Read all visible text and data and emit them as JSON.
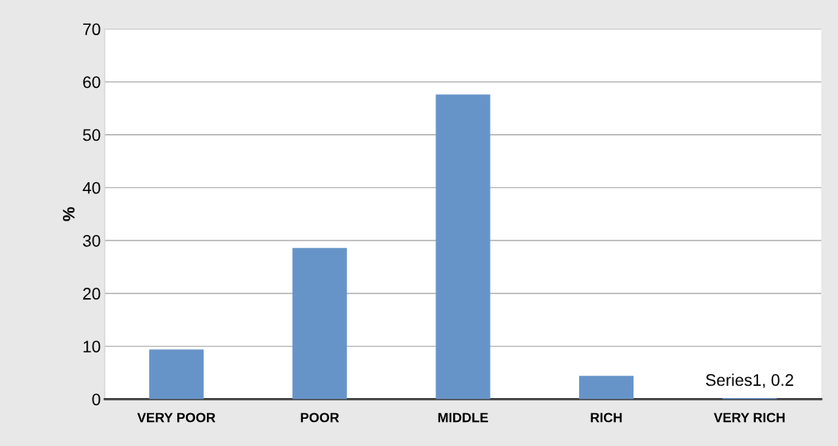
{
  "chart_data": {
    "type": "bar",
    "ylabel": "%",
    "categories": [
      "VERY POOR",
      "POOR",
      "MIDDLE",
      "RICH",
      "VERY RICH"
    ],
    "values": [
      9.4,
      28.6,
      57.6,
      4.4,
      0.2
    ],
    "value_labels": [
      null,
      null,
      null,
      null,
      "Series1, 0.2"
    ],
    "color": "#6794c8",
    "ylim": [
      0,
      70
    ],
    "yticks": [
      0,
      10,
      20,
      30,
      40,
      50,
      60,
      70
    ],
    "grid": "y"
  }
}
